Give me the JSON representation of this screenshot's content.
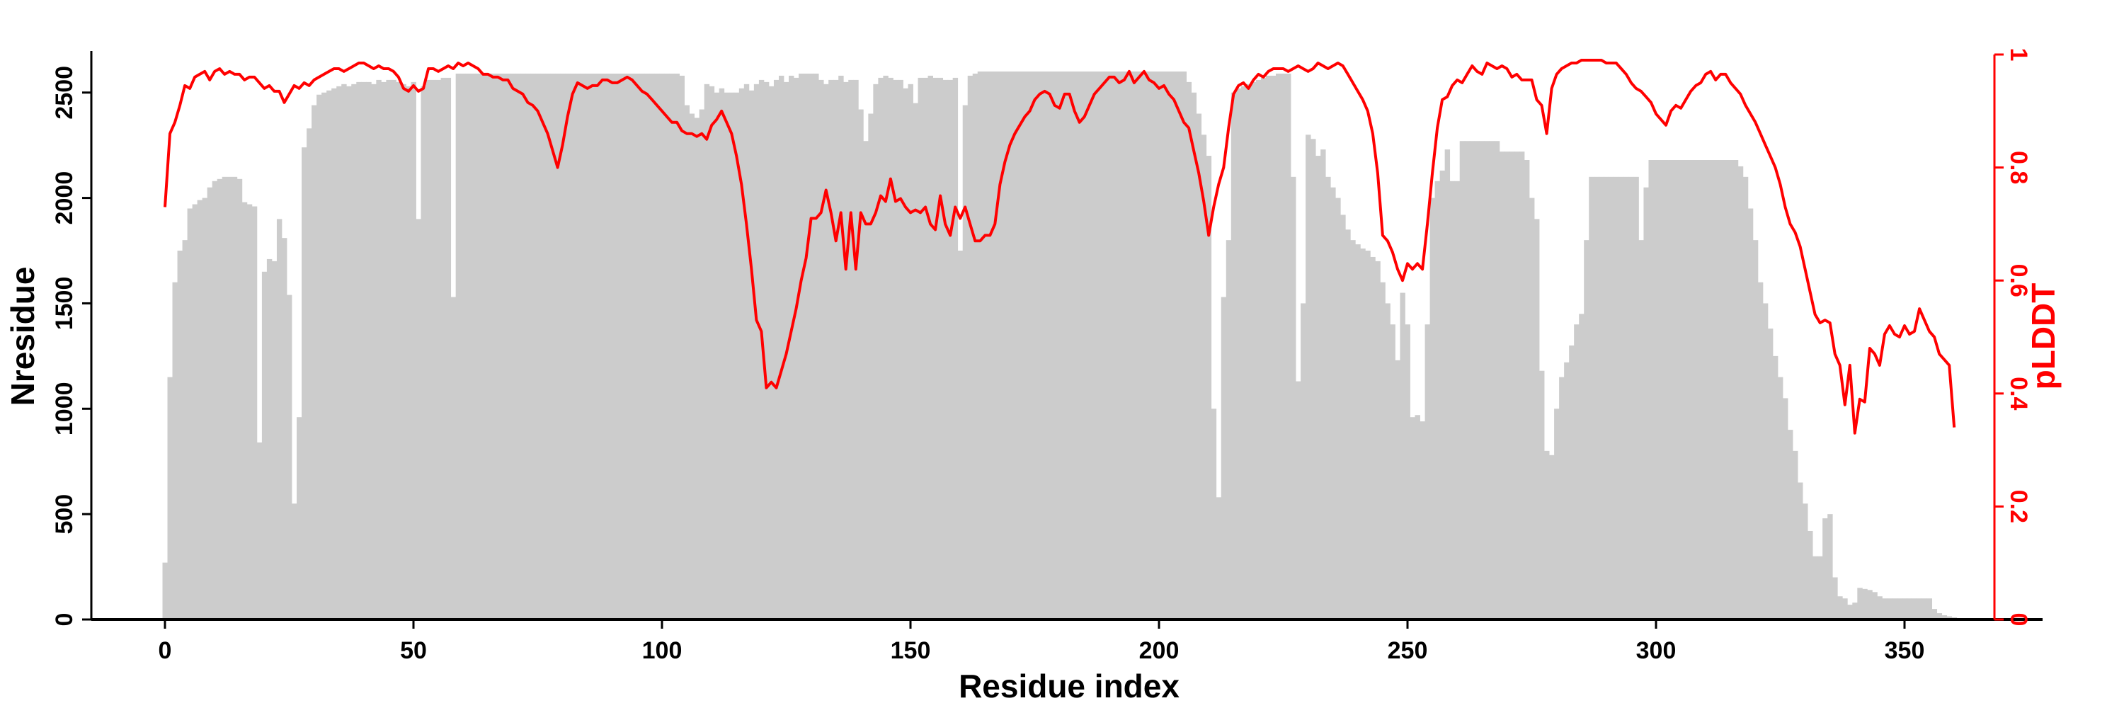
{
  "chart_data": {
    "type": "bar+line",
    "xlabel": "Residue index",
    "ylabel_left": "Nresidue",
    "ylabel_right": "pLDDT",
    "xlim": [
      -15,
      377
    ],
    "ylim_left": [
      0,
      2700
    ],
    "ylim_right": [
      0,
      1
    ],
    "x_ticks": [
      "0",
      "50",
      "100",
      "150",
      "200",
      "250",
      "300",
      "350"
    ],
    "y_ticks_left": [
      "0",
      "500",
      "1000",
      "1500",
      "2000",
      "2500"
    ],
    "y_ticks_right": [
      "0",
      "0.2",
      "0.4",
      "0.6",
      "0.8",
      "1"
    ],
    "colors": {
      "bars": "#cccccc",
      "line": "#ff0000",
      "axis": "#000000",
      "right_axis": "#ff0000"
    },
    "bars": {
      "name": "Nresidue",
      "values": [
        270,
        1150,
        1600,
        1750,
        1800,
        1950,
        1970,
        1990,
        2000,
        2050,
        2080,
        2090,
        2100,
        2100,
        2100,
        2090,
        1980,
        1970,
        1960,
        840,
        1650,
        1710,
        1700,
        1900,
        1810,
        1540,
        550,
        960,
        2240,
        2330,
        2440,
        2490,
        2500,
        2510,
        2520,
        2530,
        2540,
        2530,
        2540,
        2550,
        2550,
        2550,
        2540,
        2560,
        2550,
        2560,
        2560,
        2550,
        2540,
        2530,
        2550,
        1900,
        2530,
        2560,
        2560,
        2560,
        2570,
        2570,
        1530,
        2590,
        2590,
        2590,
        2590,
        2590,
        2590,
        2590,
        2590,
        2590,
        2590,
        2590,
        2590,
        2590,
        2590,
        2590,
        2590,
        2590,
        2590,
        2590,
        2590,
        2590,
        2590,
        2590,
        2590,
        2590,
        2590,
        2590,
        2590,
        2590,
        2590,
        2590,
        2590,
        2590,
        2590,
        2590,
        2590,
        2590,
        2590,
        2590,
        2590,
        2590,
        2590,
        2590,
        2590,
        2590,
        2580,
        2440,
        2400,
        2380,
        2420,
        2540,
        2530,
        2500,
        2520,
        2500,
        2500,
        2500,
        2520,
        2540,
        2510,
        2540,
        2560,
        2550,
        2530,
        2560,
        2580,
        2550,
        2580,
        2570,
        2590,
        2590,
        2590,
        2590,
        2560,
        2540,
        2560,
        2560,
        2580,
        2550,
        2560,
        2560,
        2420,
        2270,
        2400,
        2540,
        2570,
        2580,
        2570,
        2560,
        2560,
        2520,
        2540,
        2450,
        2570,
        2570,
        2580,
        2570,
        2570,
        2560,
        2560,
        2570,
        1750,
        2440,
        2580,
        2590,
        2600,
        2600,
        2600,
        2600,
        2600,
        2600,
        2600,
        2600,
        2600,
        2600,
        2600,
        2600,
        2600,
        2600,
        2600,
        2600,
        2600,
        2600,
        2600,
        2600,
        2600,
        2600,
        2600,
        2600,
        2600,
        2600,
        2600,
        2600,
        2600,
        2600,
        2600,
        2600,
        2600,
        2600,
        2600,
        2600,
        2600,
        2600,
        2600,
        2600,
        2600,
        2600,
        2550,
        2500,
        2400,
        2300,
        2200,
        1000,
        580,
        1530,
        1800,
        2500,
        2520,
        2530,
        2540,
        2550,
        2560,
        2570,
        2580,
        2580,
        2590,
        2590,
        2590,
        2100,
        1130,
        1500,
        2300,
        2280,
        2200,
        2230,
        2100,
        2050,
        2000,
        1920,
        1850,
        1800,
        1780,
        1760,
        1750,
        1720,
        1700,
        1600,
        1500,
        1400,
        1230,
        1550,
        1400,
        960,
        970,
        940,
        1400,
        2000,
        2080,
        2130,
        2230,
        2080,
        2080,
        2270,
        2270,
        2270,
        2270,
        2270,
        2270,
        2270,
        2270,
        2220,
        2220,
        2220,
        2220,
        2220,
        2180,
        2000,
        1900,
        1180,
        800,
        780,
        1000,
        1150,
        1220,
        1300,
        1400,
        1450,
        1800,
        2100,
        2100,
        2100,
        2100,
        2100,
        2100,
        2100,
        2100,
        2100,
        2100,
        1800,
        2050,
        2180,
        2180,
        2180,
        2180,
        2180,
        2180,
        2180,
        2180,
        2180,
        2180,
        2180,
        2180,
        2180,
        2180,
        2180,
        2180,
        2180,
        2180,
        2150,
        2100,
        1950,
        1800,
        1600,
        1500,
        1380,
        1250,
        1150,
        1050,
        900,
        800,
        650,
        550,
        420,
        300,
        300,
        480,
        500,
        200,
        110,
        100,
        70,
        80,
        150,
        145,
        140,
        130,
        110,
        100,
        100,
        100,
        100,
        100,
        100,
        100,
        100,
        100,
        100,
        50,
        30,
        20,
        15,
        10,
        5,
        2
      ]
    },
    "line": {
      "name": "pLDDT",
      "values": [
        0.73,
        0.86,
        0.88,
        0.91,
        0.945,
        0.94,
        0.96,
        0.965,
        0.97,
        0.955,
        0.97,
        0.975,
        0.965,
        0.97,
        0.965,
        0.965,
        0.955,
        0.96,
        0.96,
        0.95,
        0.94,
        0.945,
        0.935,
        0.935,
        0.915,
        0.93,
        0.945,
        0.94,
        0.95,
        0.945,
        0.955,
        0.96,
        0.965,
        0.97,
        0.975,
        0.975,
        0.97,
        0.975,
        0.98,
        0.985,
        0.985,
        0.98,
        0.975,
        0.98,
        0.975,
        0.975,
        0.97,
        0.96,
        0.94,
        0.935,
        0.945,
        0.935,
        0.94,
        0.975,
        0.975,
        0.97,
        0.975,
        0.98,
        0.975,
        0.985,
        0.98,
        0.985,
        0.98,
        0.975,
        0.965,
        0.965,
        0.96,
        0.96,
        0.955,
        0.955,
        0.94,
        0.935,
        0.93,
        0.915,
        0.91,
        0.9,
        0.88,
        0.86,
        0.83,
        0.8,
        0.84,
        0.89,
        0.93,
        0.95,
        0.945,
        0.94,
        0.945,
        0.945,
        0.955,
        0.955,
        0.95,
        0.95,
        0.955,
        0.96,
        0.955,
        0.945,
        0.935,
        0.93,
        0.92,
        0.91,
        0.9,
        0.89,
        0.88,
        0.88,
        0.865,
        0.86,
        0.86,
        0.855,
        0.86,
        0.85,
        0.875,
        0.885,
        0.9,
        0.88,
        0.86,
        0.82,
        0.77,
        0.7,
        0.62,
        0.53,
        0.51,
        0.41,
        0.42,
        0.41,
        0.44,
        0.47,
        0.51,
        0.55,
        0.6,
        0.64,
        0.71,
        0.71,
        0.72,
        0.76,
        0.72,
        0.67,
        0.72,
        0.62,
        0.72,
        0.62,
        0.72,
        0.7,
        0.7,
        0.72,
        0.75,
        0.74,
        0.78,
        0.74,
        0.745,
        0.73,
        0.72,
        0.725,
        0.72,
        0.73,
        0.7,
        0.69,
        0.75,
        0.7,
        0.68,
        0.73,
        0.71,
        0.73,
        0.7,
        0.67,
        0.67,
        0.68,
        0.68,
        0.7,
        0.77,
        0.81,
        0.84,
        0.86,
        0.875,
        0.89,
        0.9,
        0.92,
        0.93,
        0.935,
        0.93,
        0.91,
        0.905,
        0.93,
        0.93,
        0.9,
        0.88,
        0.89,
        0.91,
        0.93,
        0.94,
        0.95,
        0.96,
        0.96,
        0.95,
        0.955,
        0.97,
        0.95,
        0.96,
        0.97,
        0.955,
        0.95,
        0.94,
        0.945,
        0.93,
        0.92,
        0.9,
        0.88,
        0.87,
        0.83,
        0.79,
        0.74,
        0.68,
        0.73,
        0.77,
        0.8,
        0.87,
        0.93,
        0.945,
        0.95,
        0.94,
        0.955,
        0.965,
        0.96,
        0.97,
        0.975,
        0.975,
        0.975,
        0.97,
        0.975,
        0.98,
        0.975,
        0.97,
        0.975,
        0.985,
        0.98,
        0.975,
        0.98,
        0.985,
        0.98,
        0.965,
        0.95,
        0.935,
        0.92,
        0.9,
        0.86,
        0.79,
        0.68,
        0.67,
        0.65,
        0.62,
        0.6,
        0.63,
        0.62,
        0.63,
        0.62,
        0.7,
        0.79,
        0.87,
        0.92,
        0.925,
        0.945,
        0.955,
        0.95,
        0.965,
        0.98,
        0.97,
        0.965,
        0.985,
        0.98,
        0.975,
        0.98,
        0.975,
        0.96,
        0.965,
        0.955,
        0.955,
        0.955,
        0.92,
        0.91,
        0.86,
        0.94,
        0.965,
        0.975,
        0.98,
        0.985,
        0.985,
        0.99,
        0.99,
        0.99,
        0.99,
        0.99,
        0.985,
        0.985,
        0.985,
        0.975,
        0.965,
        0.95,
        0.94,
        0.935,
        0.925,
        0.915,
        0.895,
        0.885,
        0.875,
        0.9,
        0.91,
        0.905,
        0.92,
        0.935,
        0.945,
        0.95,
        0.965,
        0.97,
        0.955,
        0.965,
        0.965,
        0.95,
        0.94,
        0.93,
        0.91,
        0.895,
        0.88,
        0.86,
        0.84,
        0.82,
        0.8,
        0.77,
        0.73,
        0.7,
        0.685,
        0.66,
        0.62,
        0.58,
        0.54,
        0.525,
        0.53,
        0.525,
        0.47,
        0.45,
        0.38,
        0.45,
        0.33,
        0.39,
        0.385,
        0.48,
        0.47,
        0.45,
        0.505,
        0.52,
        0.505,
        0.5,
        0.52,
        0.505,
        0.51,
        0.55,
        0.53,
        0.51,
        0.5,
        0.47,
        0.46,
        0.45,
        0.34
      ]
    }
  }
}
